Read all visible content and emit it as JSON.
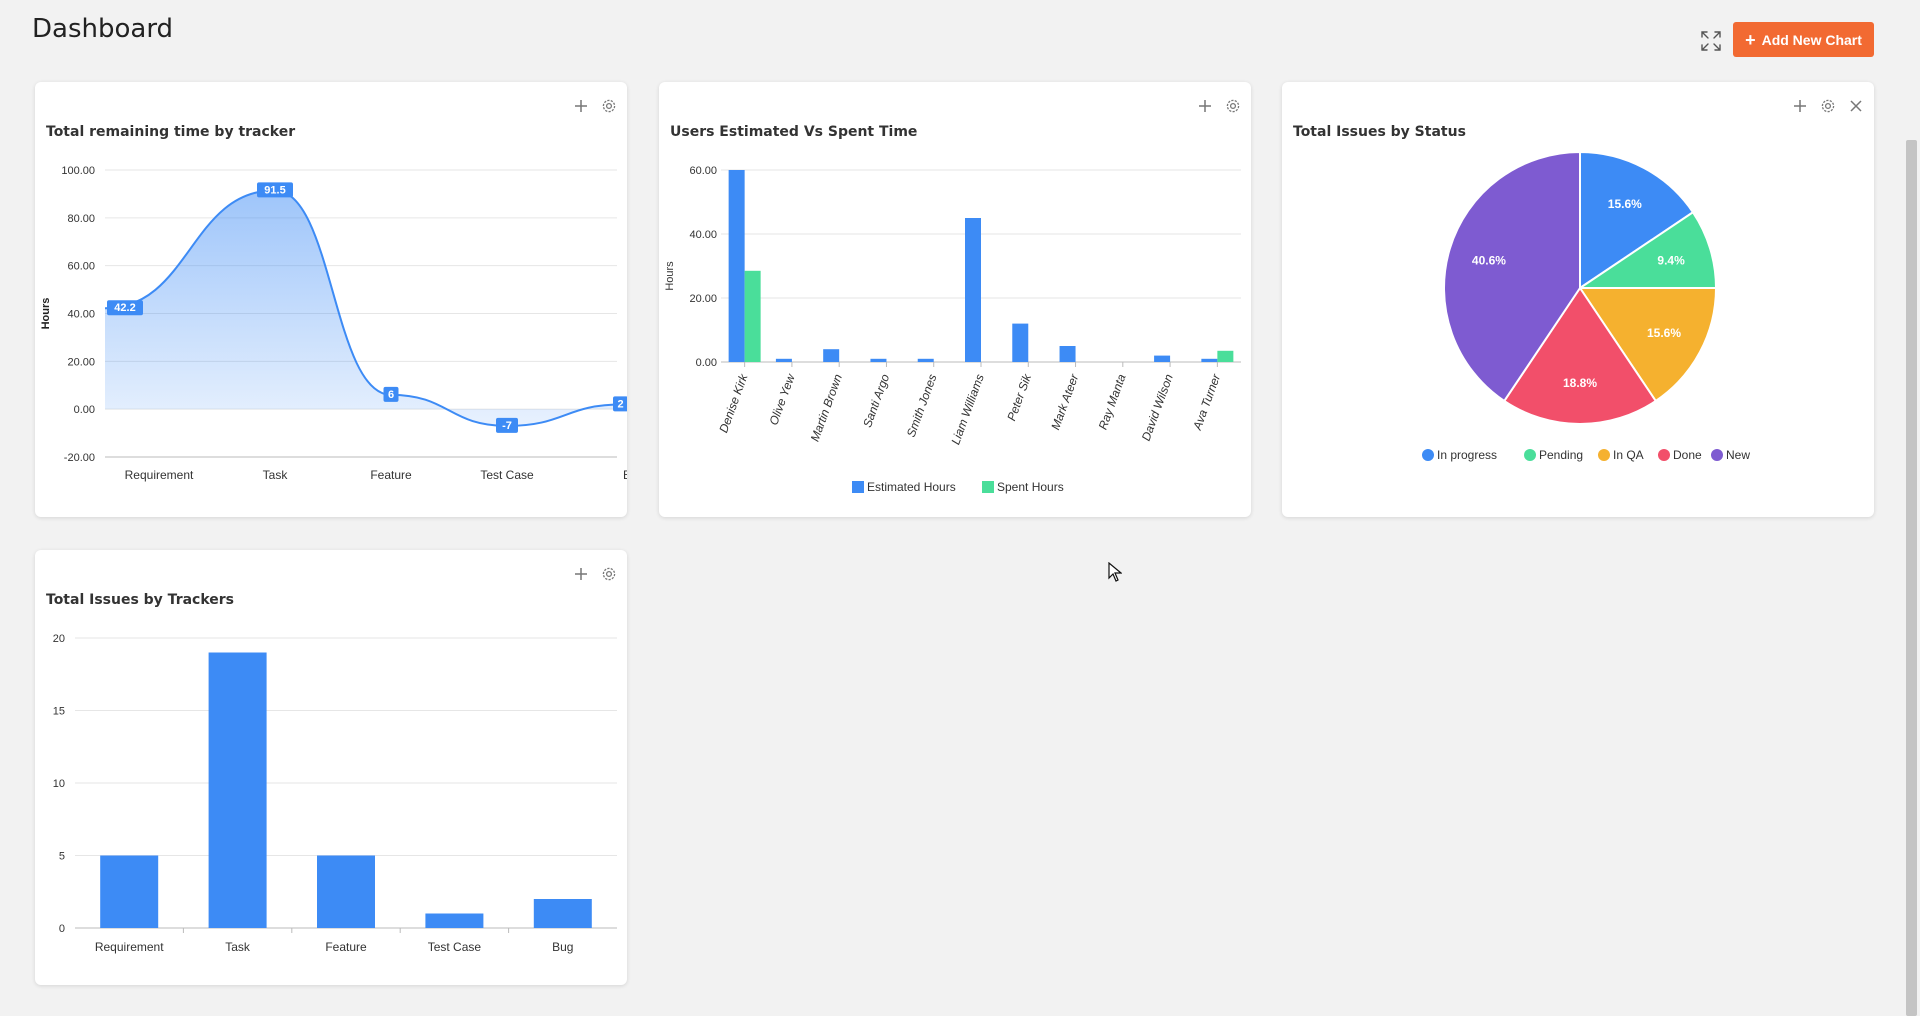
{
  "page": {
    "title": "Dashboard"
  },
  "toolbar": {
    "add_chart_label": "Add New Chart",
    "add_chart_icon": "plus-icon",
    "expand_icon": "fullscreen-icon"
  },
  "colors": {
    "accent": "#f26a32",
    "blue": "#3d8bf5",
    "green": "#4ade9a",
    "amber": "#f5b12f",
    "red": "#f24f6a",
    "purple": "#7e5bd1"
  },
  "cards": [
    {
      "title": "Total remaining time by tracker",
      "actions": [
        "plus-icon",
        "gear-icon"
      ]
    },
    {
      "title": "Users Estimated Vs Spent Time",
      "actions": [
        "plus-icon",
        "gear-icon"
      ]
    },
    {
      "title": "Total Issues by Status",
      "actions": [
        "plus-icon",
        "gear-icon",
        "close-icon"
      ]
    },
    {
      "title": "Total Issues by Trackers",
      "actions": [
        "plus-icon",
        "gear-icon"
      ]
    }
  ],
  "chart_data": [
    {
      "type": "area",
      "title": "Total remaining time by tracker",
      "ylabel": "Hours",
      "categories": [
        "Requirement",
        "Task",
        "Feature",
        "Test Case",
        "Bug"
      ],
      "values": [
        42.2,
        91.5,
        6,
        -7,
        2
      ],
      "data_labels": [
        "42.2",
        "91.5",
        "6",
        "-7",
        "2"
      ],
      "yticks": [
        "100.00",
        "80.00",
        "60.00",
        "40.00",
        "20.00",
        "0.00",
        "-20.00"
      ],
      "ylim": [
        -20,
        100
      ],
      "grid": true
    },
    {
      "type": "bar",
      "title": "Users Estimated Vs Spent Time",
      "ylabel": "Hours",
      "categories": [
        "Denise Kirk",
        "Olive Yew",
        "Martin Brown",
        "Santi Argo",
        "Smith Jones",
        "Liam Williams",
        "Peter Sik",
        "Mark Ateer",
        "Ray Manta",
        "David Wilson",
        "Ava Turner"
      ],
      "series": [
        {
          "name": "Estimated Hours",
          "values": [
            60,
            1,
            4,
            1,
            1,
            45,
            12,
            5,
            0,
            2,
            1
          ]
        },
        {
          "name": "Spent Hours",
          "values": [
            28.5,
            0,
            0,
            0,
            0,
            0,
            0,
            0,
            0,
            0,
            3.5
          ]
        }
      ],
      "yticks": [
        "60.00",
        "40.00",
        "20.00",
        "0.00"
      ],
      "ylim": [
        0,
        60
      ],
      "legend": "bottom",
      "grid": true
    },
    {
      "type": "pie",
      "title": "Total Issues by Status",
      "categories": [
        "In progress",
        "Pending",
        "In QA",
        "Done",
        "New"
      ],
      "values": [
        15.6,
        9.4,
        15.6,
        18.8,
        40.6
      ],
      "data_labels": [
        "15.6%",
        "9.4%",
        "15.6%",
        "18.8%",
        "40.6%"
      ],
      "legend": "bottom"
    },
    {
      "type": "bar",
      "title": "Total Issues by Trackers",
      "categories": [
        "Requirement",
        "Task",
        "Feature",
        "Test Case",
        "Bug"
      ],
      "values": [
        5,
        19,
        5,
        1,
        2
      ],
      "yticks": [
        "20",
        "15",
        "10",
        "5",
        "0"
      ],
      "ylim": [
        0,
        20
      ],
      "grid": true
    }
  ]
}
